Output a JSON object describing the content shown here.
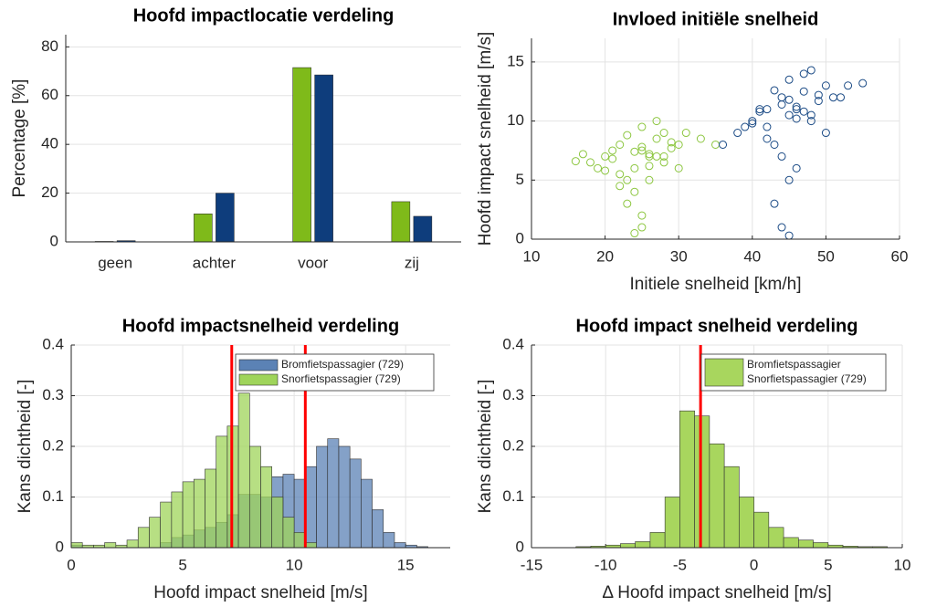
{
  "chart_data": [
    {
      "type": "bar",
      "title": "Hoofd impactlocatie verdeling",
      "ylabel": "Percentage [%]",
      "categories": [
        "geen",
        "achter",
        "voor",
        "zij"
      ],
      "series": [
        {
          "color": "#7fba1a",
          "values": [
            0.2,
            11.5,
            71.5,
            16.5
          ]
        },
        {
          "color": "#0e3d7c",
          "values": [
            0.5,
            20,
            68.5,
            10.5
          ]
        }
      ],
      "ylim": [
        0,
        85
      ],
      "yticks": [
        0,
        20,
        40,
        60,
        80
      ],
      "grid": true
    },
    {
      "type": "scatter",
      "title": "Invloed initiële snelheid",
      "xlabel": "Initiele snelheid [km/h]",
      "ylabel": "Hoofd impact snelheid [m/s]",
      "series": [
        {
          "color": "#8cc63f",
          "x": [
            18,
            20,
            22,
            24,
            25,
            26,
            27,
            28,
            23,
            21,
            19,
            30,
            31,
            24,
            26,
            25,
            22,
            28,
            29,
            27,
            16,
            33,
            23,
            25,
            26,
            20,
            24,
            28,
            21,
            30,
            25,
            27,
            23,
            26,
            24,
            22,
            29,
            25,
            35,
            17
          ],
          "values": [
            6.5,
            7,
            8,
            6,
            7.5,
            7,
            8.5,
            7,
            5,
            6.8,
            6,
            8,
            9,
            4,
            7.2,
            9.5,
            5.5,
            6.5,
            8.2,
            10,
            6.6,
            8.5,
            3,
            7.8,
            6.2,
            5.8,
            0.5,
            9,
            7.5,
            6,
            2,
            7,
            8.8,
            5,
            7.4,
            4.5,
            7.7,
            1,
            8,
            7.2
          ]
        },
        {
          "color": "#1a4a85",
          "x": [
            38,
            40,
            42,
            44,
            45,
            46,
            47,
            48,
            43,
            41,
            39,
            50,
            51,
            44,
            46,
            45,
            42,
            48,
            49,
            47,
            36,
            53,
            43,
            45,
            46,
            40,
            44,
            48,
            41,
            50,
            45,
            47,
            43,
            46,
            44,
            42,
            49,
            45,
            55,
            52
          ],
          "values": [
            9,
            10,
            11,
            12,
            10.5,
            11,
            12.5,
            10,
            8,
            10.8,
            9.5,
            13,
            12,
            7,
            11.2,
            13.5,
            9.5,
            10.5,
            12.2,
            14,
            8,
            13,
            3,
            11.8,
            10.2,
            9.8,
            1,
            14.3,
            11,
            9,
            5,
            10.8,
            12.6,
            6,
            11.4,
            8.5,
            11.7,
            0.3,
            13.2,
            12
          ]
        }
      ],
      "xlim": [
        10,
        60
      ],
      "xticks": [
        10,
        20,
        30,
        40,
        50,
        60
      ],
      "ylim": [
        0,
        17
      ],
      "yticks": [
        0,
        5,
        10,
        15
      ],
      "grid": true
    },
    {
      "type": "histogram",
      "title": "Hoofd impactsnelheid verdeling",
      "xlabel": "Hoofd impact snelheid [m/s]",
      "ylabel": "Kans dichtheid [-]",
      "bins": [
        0,
        0.5,
        1,
        1.5,
        2,
        2.5,
        3,
        3.5,
        4,
        4.5,
        5,
        5.5,
        6,
        6.5,
        7,
        7.5,
        8,
        8.5,
        9,
        9.5,
        10,
        10.5,
        11,
        11.5,
        12,
        12.5,
        13,
        13.5,
        14,
        14.5,
        15,
        15.5,
        16,
        16.5,
        17
      ],
      "series": [
        {
          "name": "Bromfietspassagier (729)",
          "color": "#5b82b5",
          "values": [
            0.005,
            0,
            0,
            0,
            0,
            0,
            0,
            0,
            0.01,
            0.02,
            0.025,
            0.035,
            0.04,
            0.05,
            0.065,
            0.105,
            0.105,
            0.1,
            0.14,
            0.145,
            0.135,
            0.16,
            0.2,
            0.215,
            0.2,
            0.175,
            0.135,
            0.075,
            0.03,
            0.01,
            0.005,
            0.002,
            0,
            0
          ]
        },
        {
          "name": "Snorfietspassagier (729)",
          "color": "#9fd45a",
          "values": [
            0.01,
            0.005,
            0.005,
            0.01,
            0.005,
            0.015,
            0.04,
            0.06,
            0.09,
            0.11,
            0.13,
            0.135,
            0.155,
            0.22,
            0.24,
            0.305,
            0.2,
            0.16,
            0.1,
            0.06,
            0.03,
            0.01,
            0,
            0,
            0,
            0,
            0,
            0,
            0,
            0,
            0,
            0,
            0,
            0
          ]
        }
      ],
      "vlines": [
        7.2,
        10.5
      ],
      "vline_color": "#ff0000",
      "xlim": [
        0,
        17
      ],
      "xticks": [
        0,
        5,
        10,
        15
      ],
      "ylim": [
        0,
        0.4
      ],
      "yticks": [
        0,
        0.1,
        0.2,
        0.3,
        0.4
      ],
      "grid": true
    },
    {
      "type": "histogram",
      "title": "Hoofd impact snelheid verdeling",
      "xlabel": "Δ Hoofd impact snelheid [m/s]",
      "ylabel": "Kans dichtheid [-]",
      "bins": [
        -15,
        -14,
        -13,
        -12,
        -11,
        -10,
        -9,
        -8,
        -7,
        -6,
        -5,
        -4,
        -3,
        -2,
        -1,
        0,
        1,
        2,
        3,
        4,
        5,
        6,
        7,
        8,
        9,
        10
      ],
      "series": [
        {
          "color": "#a8d65e",
          "values": [
            0,
            0,
            0,
            0.002,
            0.003,
            0.005,
            0.008,
            0.012,
            0.03,
            0.1,
            0.27,
            0.26,
            0.205,
            0.16,
            0.1,
            0.07,
            0.04,
            0.02,
            0.015,
            0.01,
            0.005,
            0.003,
            0.002,
            0.002,
            0
          ]
        }
      ],
      "legend": [
        "Bromfietspassagier",
        "Snorfietspassagier (729)"
      ],
      "vlines": [
        -3.6
      ],
      "vline_color": "#ff0000",
      "xlim": [
        -15,
        10
      ],
      "xticks": [
        -15,
        -10,
        -5,
        0,
        5,
        10
      ],
      "ylim": [
        0,
        0.4
      ],
      "yticks": [
        0,
        0.1,
        0.2,
        0.3,
        0.4
      ],
      "grid": true
    }
  ]
}
